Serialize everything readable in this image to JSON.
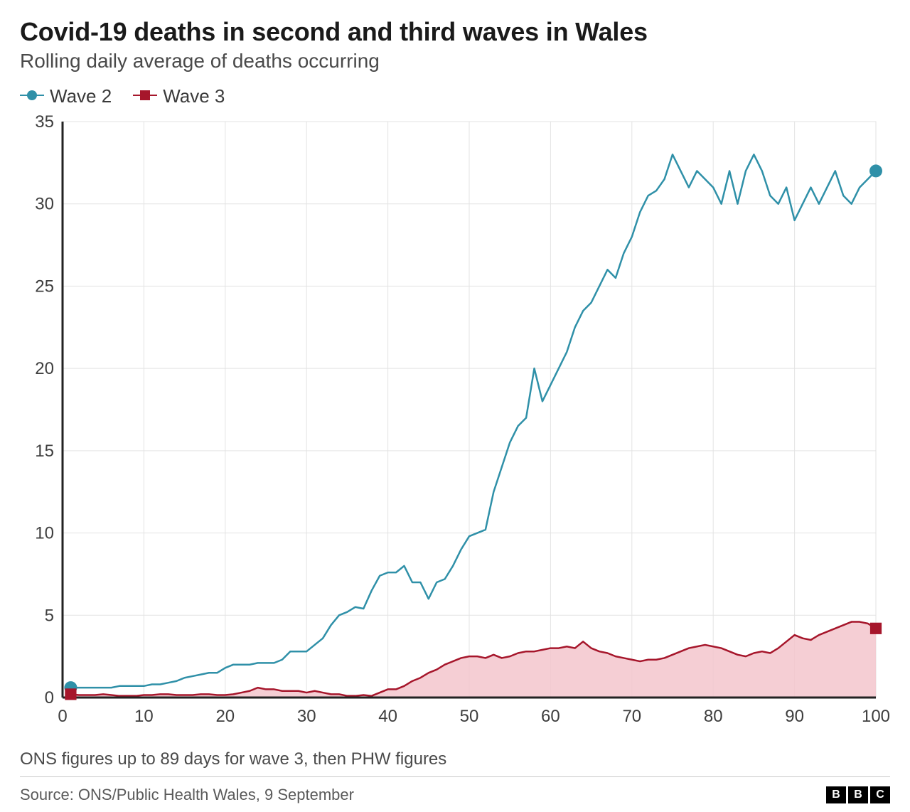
{
  "title": "Covid-19 deaths in second and third waves in Wales",
  "subtitle": "Rolling daily average of deaths occurring",
  "footnote": "ONS figures up to 89 days for wave 3, then PHW figures",
  "source": "Source: ONS/Public Health Wales, 9 September",
  "bbc_letters": [
    "B",
    "B",
    "C"
  ],
  "legend": [
    {
      "label": "Wave 2",
      "color": "#2f90a8",
      "marker": "circle"
    },
    {
      "label": "Wave 3",
      "color": "#a6162b",
      "marker": "square"
    }
  ],
  "chart": {
    "type": "line",
    "background_color": "#ffffff",
    "grid_color": "#e3e3e3",
    "axis_color": "#222222",
    "tick_font_size": 24,
    "tick_color": "#3e3e3e",
    "xlim": [
      0,
      100
    ],
    "ylim": [
      0,
      35
    ],
    "xticks": [
      0,
      10,
      20,
      30,
      40,
      50,
      60,
      70,
      80,
      90,
      100
    ],
    "yticks": [
      0,
      5,
      10,
      15,
      20,
      25,
      30,
      35
    ],
    "line_width": 2.5,
    "marker_radius": 9,
    "series": {
      "wave2": {
        "color": "#2f90a8",
        "fill": null,
        "marker": "circle",
        "end_marker_x": 100,
        "end_marker_y": 32,
        "start_marker_x": 1,
        "start_marker_y": 0.6,
        "x": [
          1,
          2,
          3,
          4,
          5,
          6,
          7,
          8,
          9,
          10,
          11,
          12,
          13,
          14,
          15,
          16,
          17,
          18,
          19,
          20,
          21,
          22,
          23,
          24,
          25,
          26,
          27,
          28,
          29,
          30,
          31,
          32,
          33,
          34,
          35,
          36,
          37,
          38,
          39,
          40,
          41,
          42,
          43,
          44,
          45,
          46,
          47,
          48,
          49,
          50,
          51,
          52,
          53,
          54,
          55,
          56,
          57,
          58,
          59,
          60,
          61,
          62,
          63,
          64,
          65,
          66,
          67,
          68,
          69,
          70,
          71,
          72,
          73,
          74,
          75,
          76,
          77,
          78,
          79,
          80,
          81,
          82,
          83,
          84,
          85,
          86,
          87,
          88,
          89,
          90,
          91,
          92,
          93,
          94,
          95,
          96,
          97,
          98,
          99,
          100
        ],
        "y": [
          0.6,
          0.6,
          0.6,
          0.6,
          0.6,
          0.6,
          0.7,
          0.7,
          0.7,
          0.7,
          0.8,
          0.8,
          0.9,
          1.0,
          1.2,
          1.3,
          1.4,
          1.5,
          1.5,
          1.8,
          2.0,
          2.0,
          2.0,
          2.1,
          2.1,
          2.1,
          2.3,
          2.8,
          2.8,
          2.8,
          3.2,
          3.6,
          4.4,
          5.0,
          5.2,
          5.5,
          5.4,
          6.5,
          7.4,
          7.6,
          7.6,
          8.0,
          7.0,
          7.0,
          6.0,
          7.0,
          7.2,
          8.0,
          9.0,
          9.8,
          10.0,
          10.2,
          12.5,
          14.0,
          15.5,
          16.5,
          17.0,
          20.0,
          18.0,
          19.0,
          20.0,
          21.0,
          22.5,
          23.5,
          24.0,
          25.0,
          26.0,
          25.5,
          27.0,
          28.0,
          29.5,
          30.5,
          30.8,
          31.5,
          33.0,
          32.0,
          31.0,
          32.0,
          31.5,
          31.0,
          30.0,
          32.0,
          30.0,
          32.0,
          33.0,
          32.0,
          30.5,
          30.0,
          31.0,
          29.0,
          30.0,
          31.0,
          30.0,
          31.0,
          32.0,
          30.5,
          30.0,
          31.0,
          31.5,
          32.0
        ]
      },
      "wave3": {
        "color": "#a6162b",
        "fill": "#f3c6cd",
        "fill_opacity": 0.85,
        "marker": "square",
        "end_marker_x": 100,
        "end_marker_y": 4.2,
        "start_marker_x": 1,
        "start_marker_y": 0.2,
        "x": [
          1,
          2,
          3,
          4,
          5,
          6,
          7,
          8,
          9,
          10,
          11,
          12,
          13,
          14,
          15,
          16,
          17,
          18,
          19,
          20,
          21,
          22,
          23,
          24,
          25,
          26,
          27,
          28,
          29,
          30,
          31,
          32,
          33,
          34,
          35,
          36,
          37,
          38,
          39,
          40,
          41,
          42,
          43,
          44,
          45,
          46,
          47,
          48,
          49,
          50,
          51,
          52,
          53,
          54,
          55,
          56,
          57,
          58,
          59,
          60,
          61,
          62,
          63,
          64,
          65,
          66,
          67,
          68,
          69,
          70,
          71,
          72,
          73,
          74,
          75,
          76,
          77,
          78,
          79,
          80,
          81,
          82,
          83,
          84,
          85,
          86,
          87,
          88,
          89,
          90,
          91,
          92,
          93,
          94,
          95,
          96,
          97,
          98,
          99,
          100
        ],
        "y": [
          0.2,
          0.15,
          0.15,
          0.15,
          0.2,
          0.15,
          0.1,
          0.1,
          0.1,
          0.15,
          0.15,
          0.2,
          0.2,
          0.15,
          0.15,
          0.15,
          0.2,
          0.2,
          0.15,
          0.15,
          0.2,
          0.3,
          0.4,
          0.6,
          0.5,
          0.5,
          0.4,
          0.4,
          0.4,
          0.3,
          0.4,
          0.3,
          0.2,
          0.2,
          0.1,
          0.1,
          0.15,
          0.1,
          0.3,
          0.5,
          0.5,
          0.7,
          1.0,
          1.2,
          1.5,
          1.7,
          2.0,
          2.2,
          2.4,
          2.5,
          2.5,
          2.4,
          2.6,
          2.4,
          2.5,
          2.7,
          2.8,
          2.8,
          2.9,
          3.0,
          3.0,
          3.1,
          3.0,
          3.4,
          3.0,
          2.8,
          2.7,
          2.5,
          2.4,
          2.3,
          2.2,
          2.3,
          2.3,
          2.4,
          2.6,
          2.8,
          3.0,
          3.1,
          3.2,
          3.1,
          3.0,
          2.8,
          2.6,
          2.5,
          2.7,
          2.8,
          2.7,
          3.0,
          3.4,
          3.8,
          3.6,
          3.5,
          3.8,
          4.0,
          4.2,
          4.4,
          4.6,
          4.6,
          4.5,
          4.2
        ]
      }
    }
  }
}
